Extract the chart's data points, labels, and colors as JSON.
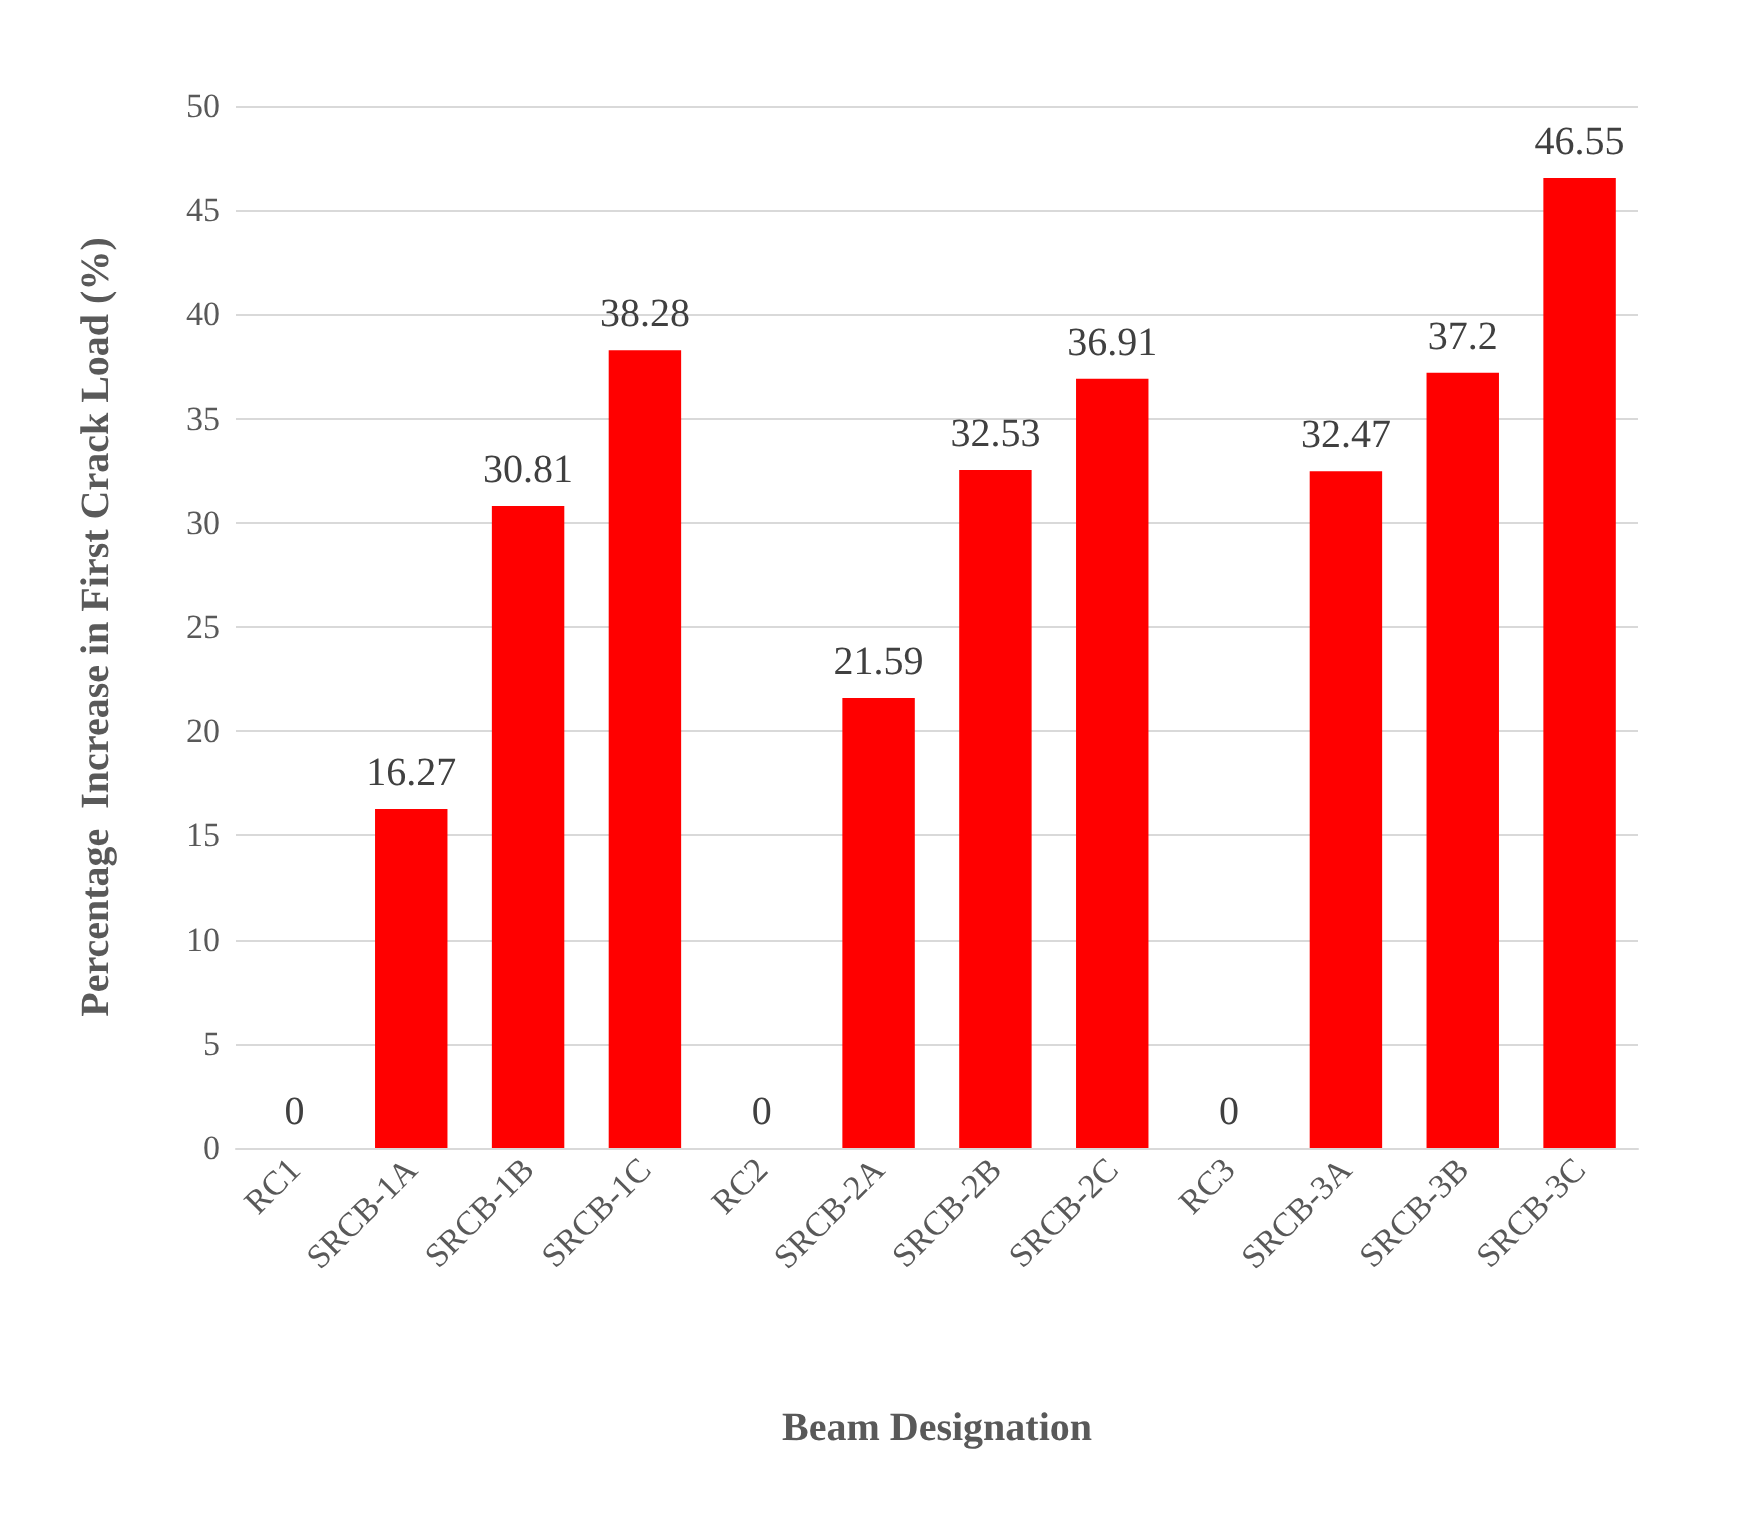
{
  "chart_data": {
    "type": "bar",
    "xlabel": "Beam Designation",
    "ylabel": "Percentage  Increase in First Crack Load (%)",
    "categories": [
      "RC1",
      "SRCB-1A",
      "SRCB-1B",
      "SRCB-1C",
      "RC2",
      "SRCB-2A",
      "SRCB-2B",
      "SRCB-2C",
      "RC3",
      "SRCB-3A",
      "SRCB-3B",
      "SRCB-3C"
    ],
    "values": [
      0,
      16.27,
      30.81,
      38.28,
      0,
      21.59,
      32.53,
      36.91,
      0,
      32.47,
      37.2,
      46.55
    ],
    "color": "#ff0000",
    "ylim": [
      0,
      50
    ],
    "yticks": [
      0,
      5,
      10,
      15,
      20,
      25,
      30,
      35,
      40,
      45,
      50
    ],
    "grid": "y",
    "data_labels": true
  }
}
